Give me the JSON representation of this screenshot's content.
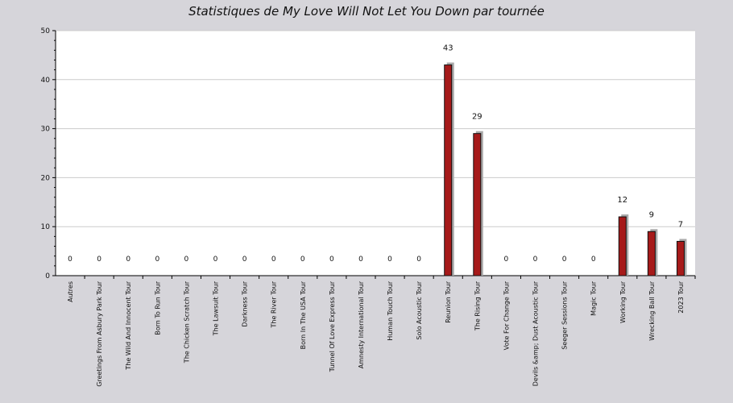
{
  "chart_data": {
    "type": "bar",
    "title": "Statistiques de My Love Will Not Let You Down par tournée",
    "xlabel": "",
    "ylabel": "",
    "ylim": [
      0,
      50
    ],
    "yticks": [
      0,
      10,
      20,
      30,
      40,
      50
    ],
    "grid": true,
    "categories": [
      "Autres",
      "Greetings From Asbury Park Tour",
      "The Wild And Innocent Tour",
      "Born To Run Tour",
      "The Chicken Scratch Tour",
      "The Lawsuit Tour",
      "Darkness Tour",
      "The River Tour",
      "Born In The USA Tour",
      "Tunnel Of Love Express Tour",
      "Amnesty International Tour",
      "Human Touch Tour",
      "Solo Acoustic Tour",
      "Reunion Tour",
      "The Rising Tour",
      "Vote For Change Tour",
      "Devils &amp; Dust Acoustic Tour",
      "Seeger Sessions Tour",
      "Magic Tour",
      "Working Tour",
      "Wrecking Ball Tour",
      "2023 Tour"
    ],
    "values": [
      0,
      0,
      0,
      0,
      0,
      0,
      0,
      0,
      0,
      0,
      0,
      0,
      0,
      43,
      29,
      0,
      0,
      0,
      0,
      12,
      9,
      7
    ],
    "colors": {
      "bar": "#a61a1a",
      "bar_shadow": "#a9a9a9",
      "plot_bg": "#ffffff",
      "page_bg": "#d6d5da",
      "grid": "#cccccc"
    }
  }
}
